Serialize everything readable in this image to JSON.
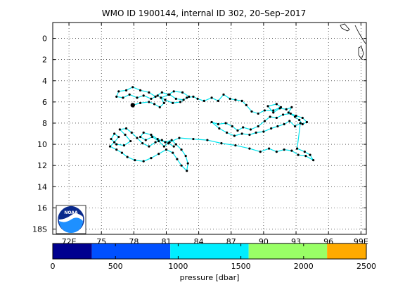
{
  "chart_data": {
    "type": "line",
    "title": "WMO ID 1900144, internal ID 302, 20–Sep–2017",
    "xlim": [
      70.5,
      99.5
    ],
    "ylim": [
      -1.5,
      18.5
    ],
    "y_reversed": true,
    "grid": true,
    "x_ticks": [
      {
        "value": 72,
        "label": "72E"
      },
      {
        "value": 75,
        "label": "75"
      },
      {
        "value": 78,
        "label": "78"
      },
      {
        "value": 81,
        "label": "81"
      },
      {
        "value": 84,
        "label": "84"
      },
      {
        "value": 87,
        "label": "87"
      },
      {
        "value": 90,
        "label": "90"
      },
      {
        "value": 93,
        "label": "93"
      },
      {
        "value": 96,
        "label": "96"
      },
      {
        "value": 99,
        "label": "99E"
      }
    ],
    "y_ticks": [
      {
        "value": 0,
        "label": "0"
      },
      {
        "value": 2,
        "label": "2"
      },
      {
        "value": 4,
        "label": "4"
      },
      {
        "value": 6,
        "label": "6"
      },
      {
        "value": 8,
        "label": "8"
      },
      {
        "value": 10,
        "label": "10"
      },
      {
        "value": 12,
        "label": "12"
      },
      {
        "value": 14,
        "label": "14"
      },
      {
        "value": 16,
        "label": "16"
      },
      {
        "value": 18,
        "label": "18S"
      }
    ],
    "track_color": "#00e5ee",
    "marker_color": "#000000",
    "track": [
      {
        "x": 77.9,
        "y": 6.3
      },
      {
        "x": 78.6,
        "y": 6.1
      },
      {
        "x": 79.4,
        "y": 6.0
      },
      {
        "x": 79.9,
        "y": 6.2
      },
      {
        "x": 80.4,
        "y": 6.5
      },
      {
        "x": 80.8,
        "y": 6.1
      },
      {
        "x": 80.5,
        "y": 5.6
      },
      {
        "x": 81.3,
        "y": 5.3
      },
      {
        "x": 81.9,
        "y": 5.7
      },
      {
        "x": 82.6,
        "y": 5.8
      },
      {
        "x": 83.1,
        "y": 5.5
      },
      {
        "x": 82.5,
        "y": 5.1
      },
      {
        "x": 81.7,
        "y": 5.0
      },
      {
        "x": 81.2,
        "y": 5.3
      },
      {
        "x": 80.6,
        "y": 5.1
      },
      {
        "x": 80.0,
        "y": 5.5
      },
      {
        "x": 79.4,
        "y": 5.1
      },
      {
        "x": 78.6,
        "y": 4.9
      },
      {
        "x": 77.9,
        "y": 4.6
      },
      {
        "x": 77.3,
        "y": 4.9
      },
      {
        "x": 76.6,
        "y": 5.0
      },
      {
        "x": 76.4,
        "y": 5.5
      },
      {
        "x": 77.0,
        "y": 5.6
      },
      {
        "x": 77.6,
        "y": 5.3
      },
      {
        "x": 78.3,
        "y": 5.6
      },
      {
        "x": 78.9,
        "y": 5.4
      },
      {
        "x": 79.6,
        "y": 5.7
      },
      {
        "x": 80.2,
        "y": 5.4
      },
      {
        "x": 80.9,
        "y": 5.8
      },
      {
        "x": 81.6,
        "y": 6.1
      },
      {
        "x": 82.3,
        "y": 6.0
      },
      {
        "x": 82.9,
        "y": 5.6
      },
      {
        "x": 83.5,
        "y": 5.5
      },
      {
        "x": 83.9,
        "y": 5.7
      },
      {
        "x": 84.5,
        "y": 5.9
      },
      {
        "x": 85.2,
        "y": 5.6
      },
      {
        "x": 85.8,
        "y": 5.9
      },
      {
        "x": 86.3,
        "y": 5.3
      },
      {
        "x": 86.9,
        "y": 5.7
      },
      {
        "x": 87.4,
        "y": 5.8
      },
      {
        "x": 88.0,
        "y": 5.9
      },
      {
        "x": 88.4,
        "y": 6.3
      },
      {
        "x": 88.9,
        "y": 6.9
      },
      {
        "x": 89.5,
        "y": 7.1
      },
      {
        "x": 90.1,
        "y": 6.8
      },
      {
        "x": 90.9,
        "y": 6.8
      },
      {
        "x": 91.6,
        "y": 6.5
      },
      {
        "x": 91.2,
        "y": 6.2
      },
      {
        "x": 90.4,
        "y": 6.4
      },
      {
        "x": 90.9,
        "y": 7.0
      },
      {
        "x": 91.5,
        "y": 6.6
      },
      {
        "x": 92.1,
        "y": 6.7
      },
      {
        "x": 92.6,
        "y": 6.5
      },
      {
        "x": 92.3,
        "y": 7.0
      },
      {
        "x": 92.9,
        "y": 7.4
      },
      {
        "x": 93.3,
        "y": 7.7
      },
      {
        "x": 93.6,
        "y": 8.1
      },
      {
        "x": 94.0,
        "y": 7.9
      },
      {
        "x": 93.6,
        "y": 7.5
      },
      {
        "x": 93.0,
        "y": 7.3
      },
      {
        "x": 92.5,
        "y": 7.1
      },
      {
        "x": 91.8,
        "y": 7.2
      },
      {
        "x": 91.2,
        "y": 7.5
      },
      {
        "x": 90.6,
        "y": 7.4
      },
      {
        "x": 90.1,
        "y": 7.8
      },
      {
        "x": 89.5,
        "y": 8.3
      },
      {
        "x": 88.8,
        "y": 8.6
      },
      {
        "x": 88.1,
        "y": 8.4
      },
      {
        "x": 87.6,
        "y": 8.7
      },
      {
        "x": 87.1,
        "y": 8.3
      },
      {
        "x": 86.5,
        "y": 8.0
      },
      {
        "x": 85.8,
        "y": 8.1
      },
      {
        "x": 85.2,
        "y": 7.9
      },
      {
        "x": 85.9,
        "y": 8.5
      },
      {
        "x": 86.6,
        "y": 8.9
      },
      {
        "x": 87.3,
        "y": 9.2
      },
      {
        "x": 88.0,
        "y": 9.0
      },
      {
        "x": 88.7,
        "y": 9.1
      },
      {
        "x": 89.3,
        "y": 8.9
      },
      {
        "x": 90.0,
        "y": 8.8
      },
      {
        "x": 90.7,
        "y": 8.5
      },
      {
        "x": 91.3,
        "y": 8.3
      },
      {
        "x": 91.9,
        "y": 8.1
      },
      {
        "x": 92.4,
        "y": 7.8
      },
      {
        "x": 92.9,
        "y": 8.3
      },
      {
        "x": 93.4,
        "y": 8.0
      },
      {
        "x": 93.1,
        "y": 10.4
      },
      {
        "x": 93.8,
        "y": 10.7
      },
      {
        "x": 94.3,
        "y": 11.0
      },
      {
        "x": 94.6,
        "y": 11.5
      },
      {
        "x": 93.9,
        "y": 11.1
      },
      {
        "x": 93.2,
        "y": 11.0
      },
      {
        "x": 92.6,
        "y": 10.6
      },
      {
        "x": 91.9,
        "y": 10.5
      },
      {
        "x": 91.2,
        "y": 10.7
      },
      {
        "x": 90.5,
        "y": 10.4
      },
      {
        "x": 89.7,
        "y": 10.7
      },
      {
        "x": 88.7,
        "y": 10.4
      },
      {
        "x": 87.4,
        "y": 10.1
      },
      {
        "x": 86.1,
        "y": 9.9
      },
      {
        "x": 84.8,
        "y": 9.6
      },
      {
        "x": 83.5,
        "y": 9.5
      },
      {
        "x": 82.2,
        "y": 9.4
      },
      {
        "x": 81.3,
        "y": 9.8
      },
      {
        "x": 80.8,
        "y": 10.2
      },
      {
        "x": 80.3,
        "y": 9.7
      },
      {
        "x": 79.7,
        "y": 9.3
      },
      {
        "x": 79.1,
        "y": 9.6
      },
      {
        "x": 78.6,
        "y": 9.3
      },
      {
        "x": 78.9,
        "y": 8.9
      },
      {
        "x": 79.6,
        "y": 9.1
      },
      {
        "x": 80.2,
        "y": 9.5
      },
      {
        "x": 80.9,
        "y": 9.8
      },
      {
        "x": 81.5,
        "y": 9.6
      },
      {
        "x": 81.9,
        "y": 10.0
      },
      {
        "x": 82.4,
        "y": 10.5
      },
      {
        "x": 82.8,
        "y": 11.1
      },
      {
        "x": 83.0,
        "y": 11.8
      },
      {
        "x": 82.9,
        "y": 12.5
      },
      {
        "x": 82.4,
        "y": 12.0
      },
      {
        "x": 82.0,
        "y": 11.4
      },
      {
        "x": 81.6,
        "y": 10.8
      },
      {
        "x": 81.0,
        "y": 10.5
      },
      {
        "x": 80.3,
        "y": 10.9
      },
      {
        "x": 79.6,
        "y": 11.3
      },
      {
        "x": 78.9,
        "y": 11.6
      },
      {
        "x": 78.1,
        "y": 11.5
      },
      {
        "x": 77.4,
        "y": 11.2
      },
      {
        "x": 76.9,
        "y": 10.8
      },
      {
        "x": 76.4,
        "y": 10.5
      },
      {
        "x": 75.8,
        "y": 10.2
      },
      {
        "x": 76.2,
        "y": 9.8
      },
      {
        "x": 76.6,
        "y": 9.3
      },
      {
        "x": 76.2,
        "y": 9.0
      },
      {
        "x": 75.9,
        "y": 9.5
      },
      {
        "x": 76.4,
        "y": 10.0
      },
      {
        "x": 77.1,
        "y": 10.1
      },
      {
        "x": 77.7,
        "y": 9.7
      },
      {
        "x": 77.2,
        "y": 9.1
      },
      {
        "x": 76.7,
        "y": 8.6
      },
      {
        "x": 77.3,
        "y": 8.5
      },
      {
        "x": 77.8,
        "y": 8.9
      },
      {
        "x": 78.3,
        "y": 9.4
      },
      {
        "x": 78.8,
        "y": 9.9
      },
      {
        "x": 79.4,
        "y": 10.2
      },
      {
        "x": 80.0,
        "y": 9.8
      },
      {
        "x": 80.6,
        "y": 9.6
      },
      {
        "x": 81.2,
        "y": 9.9
      },
      {
        "x": 81.7,
        "y": 10.2
      }
    ],
    "start_point": {
      "x": 77.9,
      "y": 6.3
    },
    "colorbar": {
      "label": "pressure [dbar]",
      "min": 0,
      "max": 2500,
      "tick_values": [
        0,
        500,
        1000,
        1500,
        2000,
        2500
      ],
      "tick_labels": [
        "0",
        "500",
        "1000",
        "1500",
        "2000",
        "2500"
      ],
      "bands": [
        {
          "from": 0,
          "to": 312,
          "color": "#00008f"
        },
        {
          "from": 312,
          "to": 937,
          "color": "#0050ff"
        },
        {
          "from": 937,
          "to": 1562,
          "color": "#00eeff"
        },
        {
          "from": 1562,
          "to": 2187,
          "color": "#99ff66"
        },
        {
          "from": 2187,
          "to": 2500,
          "color": "#ffaa00"
        }
      ]
    }
  },
  "logo": {
    "text": "NOAA",
    "ring_color": "#0a2a8c",
    "water_color": "#1e90ff"
  }
}
